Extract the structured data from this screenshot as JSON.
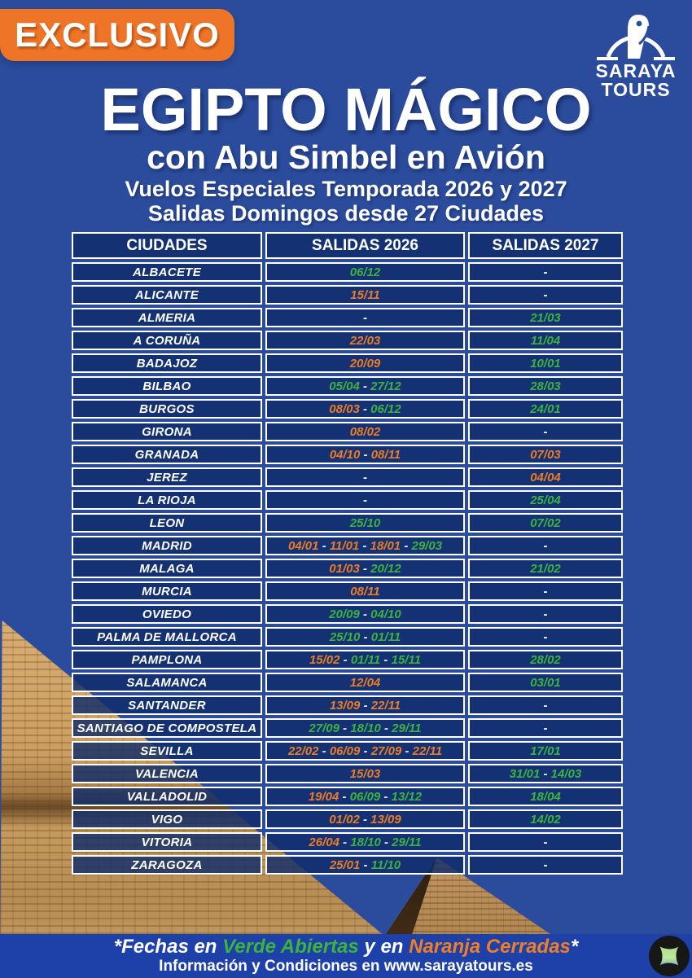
{
  "badge": {
    "label": "EXCLUSIVO"
  },
  "logo": {
    "icon": "horus-falcon-icon",
    "name": "SARAYA",
    "sub": "TOURS"
  },
  "header": {
    "title": "EGIPTO MÁGICO",
    "subtitle": "con Abu Simbel en Avión",
    "line1": "Vuelos Especiales Temporada 2026 y 2027",
    "line2": "Salidas Domingos desde 27 Ciudades"
  },
  "table": {
    "columns": [
      "CIUDADES",
      "SALIDAS 2026",
      "SALIDAS 2027"
    ],
    "empty_marker": "-",
    "separator": " - ",
    "rows": [
      {
        "city": "ALBACETE",
        "salidas_2026": [
          {
            "date": "06/12",
            "status": "open"
          }
        ],
        "salidas_2027": []
      },
      {
        "city": "ALICANTE",
        "salidas_2026": [
          {
            "date": "15/11",
            "status": "closed"
          }
        ],
        "salidas_2027": []
      },
      {
        "city": "ALMERIA",
        "salidas_2026": [],
        "salidas_2027": [
          {
            "date": "21/03",
            "status": "open"
          }
        ]
      },
      {
        "city": "A CORUÑA",
        "salidas_2026": [
          {
            "date": "22/03",
            "status": "closed"
          }
        ],
        "salidas_2027": [
          {
            "date": "11/04",
            "status": "open"
          }
        ]
      },
      {
        "city": "BADAJOZ",
        "salidas_2026": [
          {
            "date": "20/09",
            "status": "closed"
          }
        ],
        "salidas_2027": [
          {
            "date": "10/01",
            "status": "open"
          }
        ]
      },
      {
        "city": "BILBAO",
        "salidas_2026": [
          {
            "date": "05/04",
            "status": "open"
          },
          {
            "date": "27/12",
            "status": "open"
          }
        ],
        "salidas_2027": [
          {
            "date": "28/03",
            "status": "open"
          }
        ]
      },
      {
        "city": "BURGOS",
        "salidas_2026": [
          {
            "date": "08/03",
            "status": "closed"
          },
          {
            "date": "06/12",
            "status": "open"
          }
        ],
        "salidas_2027": [
          {
            "date": "24/01",
            "status": "open"
          }
        ]
      },
      {
        "city": "GIRONA",
        "salidas_2026": [
          {
            "date": "08/02",
            "status": "closed"
          }
        ],
        "salidas_2027": []
      },
      {
        "city": "GRANADA",
        "salidas_2026": [
          {
            "date": "04/10",
            "status": "closed"
          },
          {
            "date": "08/11",
            "status": "closed"
          }
        ],
        "salidas_2027": [
          {
            "date": "07/03",
            "status": "closed"
          }
        ]
      },
      {
        "city": "JEREZ",
        "salidas_2026": [],
        "salidas_2027": [
          {
            "date": "04/04",
            "status": "closed"
          }
        ]
      },
      {
        "city": "LA RIOJA",
        "salidas_2026": [],
        "salidas_2027": [
          {
            "date": "25/04",
            "status": "open"
          }
        ]
      },
      {
        "city": "LEON",
        "salidas_2026": [
          {
            "date": "25/10",
            "status": "open"
          }
        ],
        "salidas_2027": [
          {
            "date": "07/02",
            "status": "open"
          }
        ]
      },
      {
        "city": "MADRID",
        "salidas_2026": [
          {
            "date": "04/01",
            "status": "closed"
          },
          {
            "date": "11/01",
            "status": "closed"
          },
          {
            "date": "18/01",
            "status": "closed"
          },
          {
            "date": "29/03",
            "status": "open"
          }
        ],
        "salidas_2027": []
      },
      {
        "city": "MALAGA",
        "salidas_2026": [
          {
            "date": "01/03",
            "status": "closed"
          },
          {
            "date": "20/12",
            "status": "open"
          }
        ],
        "salidas_2027": [
          {
            "date": "21/02",
            "status": "open"
          }
        ]
      },
      {
        "city": "MURCIA",
        "salidas_2026": [
          {
            "date": "08/11",
            "status": "closed"
          }
        ],
        "salidas_2027": []
      },
      {
        "city": "OVIEDO",
        "salidas_2026": [
          {
            "date": "20/09",
            "status": "open"
          },
          {
            "date": "04/10",
            "status": "open"
          }
        ],
        "salidas_2027": []
      },
      {
        "city": "PALMA DE MALLORCA",
        "salidas_2026": [
          {
            "date": "25/10",
            "status": "open"
          },
          {
            "date": "01/11",
            "status": "open"
          }
        ],
        "salidas_2027": []
      },
      {
        "city": "PAMPLONA",
        "salidas_2026": [
          {
            "date": "15/02",
            "status": "closed"
          },
          {
            "date": "01/11",
            "status": "open"
          },
          {
            "date": "15/11",
            "status": "open"
          }
        ],
        "salidas_2027": [
          {
            "date": "28/02",
            "status": "open"
          }
        ]
      },
      {
        "city": "SALAMANCA",
        "salidas_2026": [
          {
            "date": "12/04",
            "status": "closed"
          }
        ],
        "salidas_2027": [
          {
            "date": "03/01",
            "status": "open"
          }
        ]
      },
      {
        "city": "SANTANDER",
        "salidas_2026": [
          {
            "date": "13/09",
            "status": "closed"
          },
          {
            "date": "22/11",
            "status": "closed"
          }
        ],
        "salidas_2027": []
      },
      {
        "city": "SANTIAGO DE COMPOSTELA",
        "salidas_2026": [
          {
            "date": "27/09",
            "status": "open"
          },
          {
            "date": "18/10",
            "status": "open"
          },
          {
            "date": "29/11",
            "status": "open"
          }
        ],
        "salidas_2027": []
      },
      {
        "city": "SEVILLA",
        "salidas_2026": [
          {
            "date": "22/02",
            "status": "closed"
          },
          {
            "date": "06/09",
            "status": "closed"
          },
          {
            "date": "27/09",
            "status": "closed"
          },
          {
            "date": "22/11",
            "status": "closed"
          }
        ],
        "salidas_2027": [
          {
            "date": "17/01",
            "status": "open"
          }
        ]
      },
      {
        "city": "VALENCIA",
        "salidas_2026": [
          {
            "date": "15/03",
            "status": "closed"
          }
        ],
        "salidas_2027": [
          {
            "date": "31/01",
            "status": "open"
          },
          {
            "date": "14/03",
            "status": "open"
          }
        ]
      },
      {
        "city": "VALLADOLID",
        "salidas_2026": [
          {
            "date": "19/04",
            "status": "closed"
          },
          {
            "date": "06/09",
            "status": "open"
          },
          {
            "date": "13/12",
            "status": "open"
          }
        ],
        "salidas_2027": [
          {
            "date": "18/04",
            "status": "open"
          }
        ]
      },
      {
        "city": "VIGO",
        "salidas_2026": [
          {
            "date": "01/02",
            "status": "closed"
          },
          {
            "date": "13/09",
            "status": "closed"
          }
        ],
        "salidas_2027": [
          {
            "date": "14/02",
            "status": "open"
          }
        ]
      },
      {
        "city": "VITORIA",
        "salidas_2026": [
          {
            "date": "26/04",
            "status": "closed"
          },
          {
            "date": "18/10",
            "status": "open"
          },
          {
            "date": "29/11",
            "status": "open"
          }
        ],
        "salidas_2027": []
      },
      {
        "city": "ZARAGOZA",
        "salidas_2026": [
          {
            "date": "25/01",
            "status": "closed"
          },
          {
            "date": "11/10",
            "status": "open"
          }
        ],
        "salidas_2027": []
      }
    ]
  },
  "footer": {
    "note_parts": [
      {
        "text": "*Fechas en ",
        "color": "white"
      },
      {
        "text": "Verde Abiertas",
        "color": "green"
      },
      {
        "text": " y en ",
        "color": "white"
      },
      {
        "text": "Naranja Cerradas",
        "color": "orange"
      },
      {
        "text": "*",
        "color": "white"
      }
    ],
    "info": "Información y Condiciones en www.sarayatours.es"
  },
  "colors": {
    "background_blue": "#2b4c9c",
    "cell_navy": "#1c3a7a",
    "footer_blue": "#1d40a9",
    "badge_orange": "#ee7428",
    "open_green": "#3db33c",
    "closed_orange": "#ed7c22"
  }
}
